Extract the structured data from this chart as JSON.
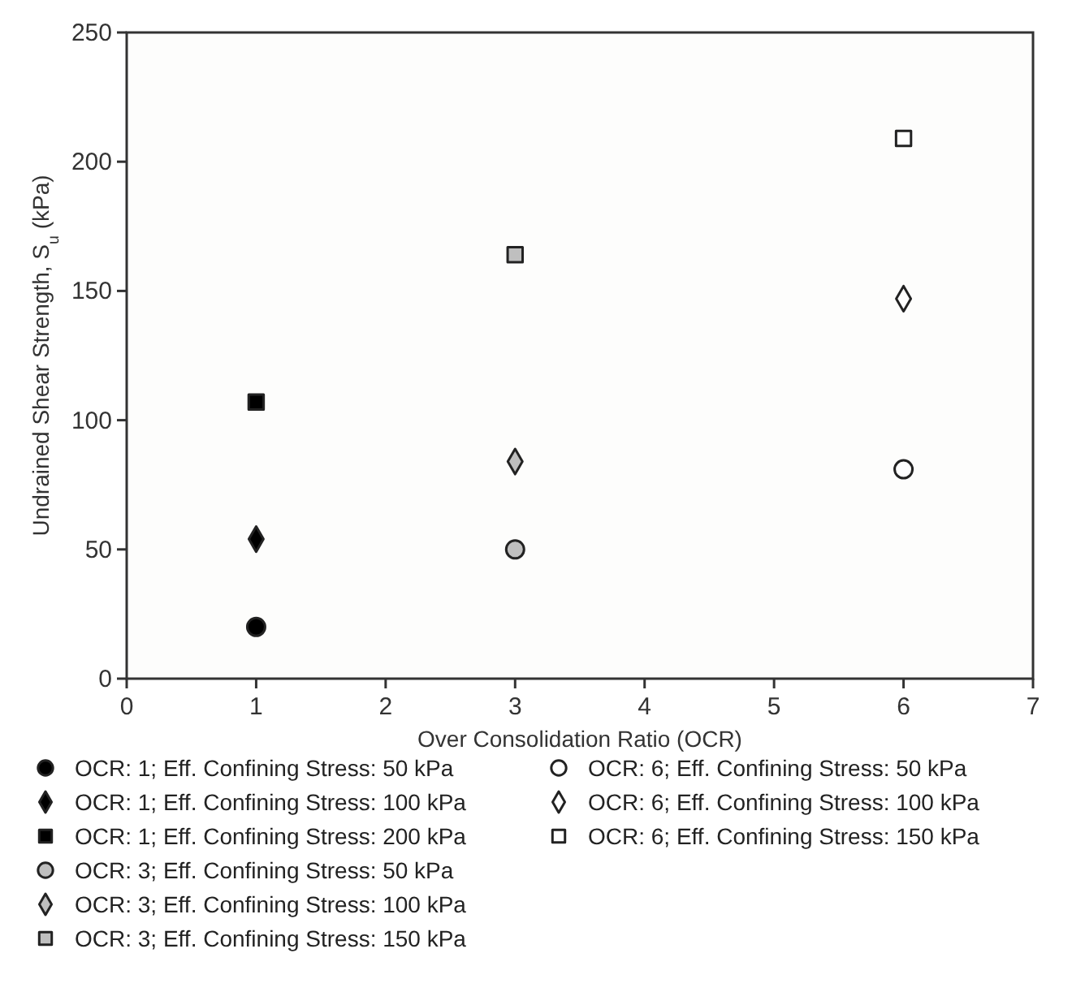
{
  "chart_data": {
    "type": "scatter",
    "xlabel": "Over Consolidation Ratio (OCR)",
    "ylabel": "Undrained Shear Strength, S$_{u}$ (kPa)",
    "xlim": [
      0,
      7
    ],
    "xticks": [
      0,
      1,
      2,
      3,
      4,
      5,
      6,
      7
    ],
    "ylim": [
      0,
      250
    ],
    "yticks": [
      0,
      50,
      100,
      150,
      200,
      250
    ],
    "grid": false,
    "legend": "bottom",
    "series": [
      {
        "name": "OCR: 1; Eff. Confining Stress: 50 kPa",
        "color": "#000000",
        "marker": "circle",
        "x": [
          1
        ],
        "values": [
          20
        ]
      },
      {
        "name": "OCR: 1; Eff. Confining Stress: 100 kPa",
        "color": "#000000",
        "marker": "diamond",
        "x": [
          1
        ],
        "values": [
          54
        ]
      },
      {
        "name": "OCR: 1; Eff. Confining Stress: 200 kPa",
        "color": "#000000",
        "marker": "square",
        "x": [
          1
        ],
        "values": [
          107
        ]
      },
      {
        "name": "OCR: 3; Eff. Confining Stress: 50 kPa",
        "color": "#bfbfbf",
        "marker": "circle",
        "x": [
          3
        ],
        "values": [
          50
        ]
      },
      {
        "name": "OCR: 3; Eff. Confining Stress: 100 kPa",
        "color": "#bfbfbf",
        "marker": "diamond",
        "x": [
          3
        ],
        "values": [
          84
        ]
      },
      {
        "name": "OCR: 3; Eff. Confining Stress: 150 kPa",
        "color": "#bfbfbf",
        "marker": "square",
        "x": [
          3
        ],
        "values": [
          164
        ]
      },
      {
        "name": "OCR: 6; Eff. Confining Stress: 50 kPa",
        "color": "#ffffff",
        "marker": "circle",
        "x": [
          6
        ],
        "values": [
          81
        ]
      },
      {
        "name": "OCR: 6; Eff. Confining Stress: 100 kPa",
        "color": "#ffffff",
        "marker": "diamond",
        "x": [
          6
        ],
        "values": [
          147
        ]
      },
      {
        "name": "OCR: 6; Eff. Confining Stress: 150 kPa",
        "color": "#ffffff",
        "marker": "square",
        "x": [
          6
        ],
        "values": [
          209
        ]
      }
    ]
  }
}
